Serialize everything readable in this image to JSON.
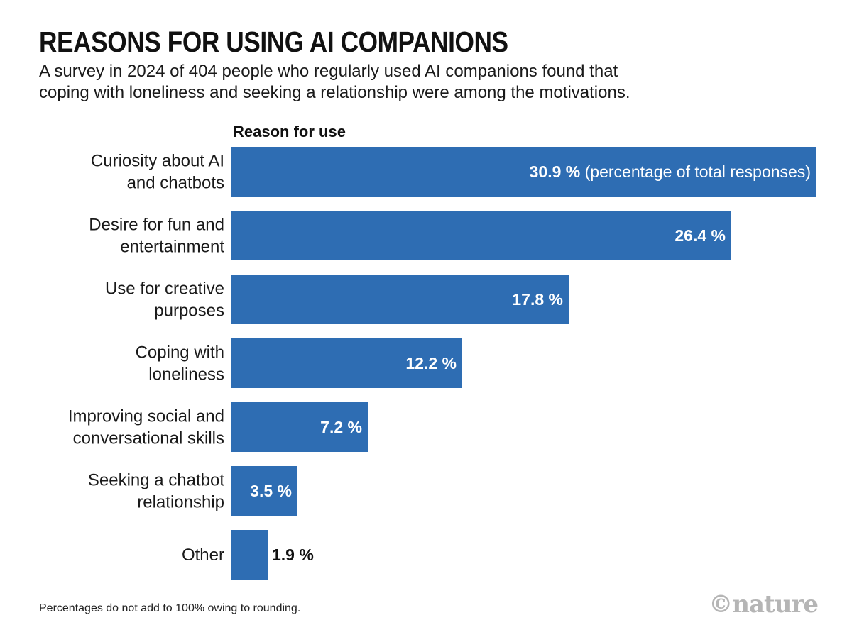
{
  "colors": {
    "bar": "#2e6db3",
    "label_inside": "#ffffff",
    "label_outside": "#111111"
  },
  "chart_data": {
    "type": "bar",
    "orientation": "horizontal",
    "title": "REASONS FOR USING AI COMPANIONS",
    "subtitle_lines": [
      "A survey in 2024 of 404 people who regularly used AI companions found that",
      "coping with loneliness and seeking a relationship were among the motivations."
    ],
    "axis_title": "Reason for use",
    "categories": [
      [
        "Curiosity about AI",
        "and chatbots"
      ],
      [
        "Desire for fun and",
        "entertainment"
      ],
      [
        "Use for creative",
        "purposes"
      ],
      [
        "Coping with",
        "loneliness"
      ],
      [
        "Improving social and",
        "conversational skills"
      ],
      [
        "Seeking a chatbot",
        "relationship"
      ],
      [
        "Other"
      ]
    ],
    "values": [
      30.9,
      26.4,
      17.8,
      12.2,
      7.2,
      3.5,
      1.9
    ],
    "value_labels": [
      "30.9 %",
      "26.4 %",
      "17.8 %",
      "12.2 %",
      "7.2 %",
      "3.5 %",
      "1.9 %"
    ],
    "first_label_suffix": "(percentage of total responses)",
    "xlim": [
      0,
      30.9
    ],
    "unit": "%"
  },
  "footnote": "Percentages do not add to 100% owing to rounding.",
  "logo": "©nature"
}
